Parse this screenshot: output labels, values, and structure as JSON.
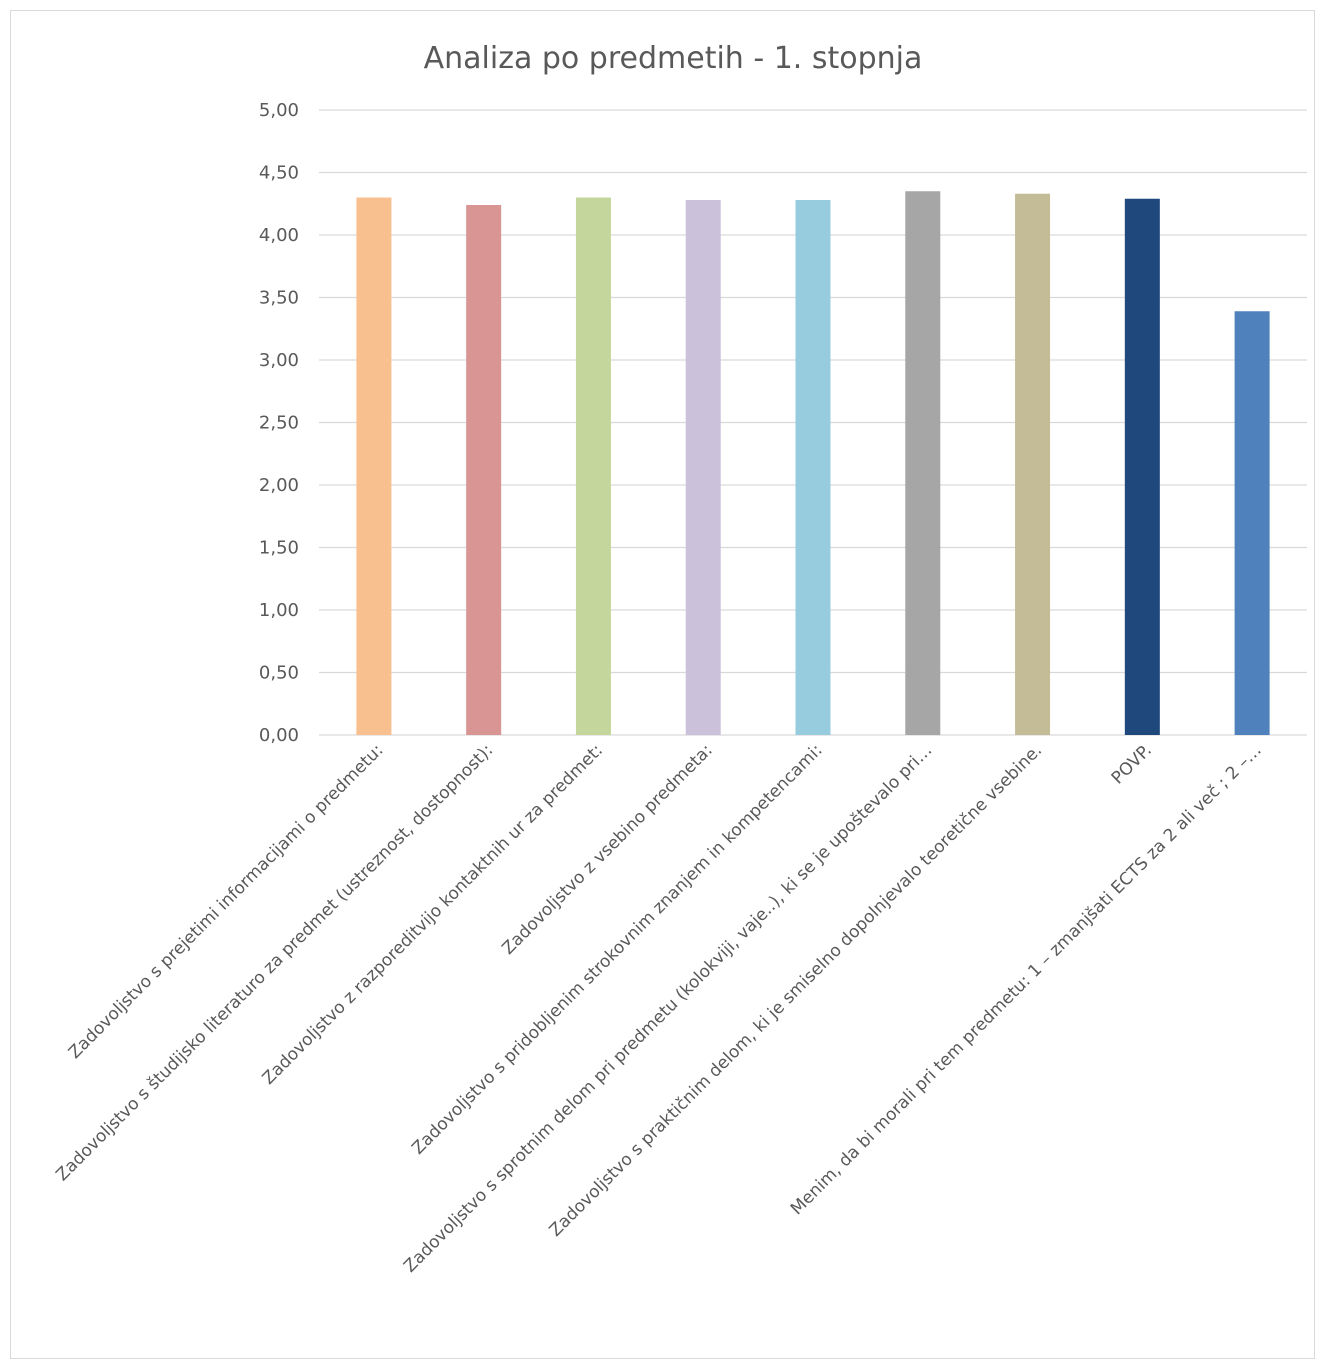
{
  "chart_data": {
    "type": "bar",
    "title": "Analiza po predmetih - 1. stopnja",
    "xlabel": "",
    "ylabel": "",
    "ylim": [
      0,
      5
    ],
    "y_ticks": [
      "0,00",
      "0,50",
      "1,00",
      "1,50",
      "2,00",
      "2,50",
      "3,00",
      "3,50",
      "4,00",
      "4,50",
      "5,00"
    ],
    "grid": true,
    "legend": "none",
    "categories": [
      "Zadovoljstvo s prejetimi informacijami o predmetu:",
      "Zadovoljstvo s študijsko literaturo za predmet (ustreznost, dostopnost):",
      "Zadovoljstvo z razporeditvijo kontaktnih ur za predmet:",
      "Zadovoljstvo z vsebino predmeta:",
      "Zadovoljstvo s pridobljenim strokovnim znanjem in kompetencami:",
      "Zadovoljstvo s sprotnim delom pri predmetu (kolokviji, vaje..), ki se je upoštevalo pri…",
      "Zadovoljstvo s praktičnim delom, ki je smiselno dopolnjevalo teoretične vsebine.",
      "POVP.",
      "Menim, da bi morali pri tem predmetu:  1 – zmanjšati ECTS za 2 ali več ; 2 –…"
    ],
    "values": [
      4.3,
      4.24,
      4.3,
      4.28,
      4.28,
      4.35,
      4.33,
      4.29,
      3.39
    ],
    "colors": [
      "#F9C08F",
      "#D99593",
      "#C4D69B",
      "#CBC1DA",
      "#96CCDD",
      "#A6A6A6",
      "#C4BC96",
      "#1F497D",
      "#4F81BD"
    ]
  }
}
